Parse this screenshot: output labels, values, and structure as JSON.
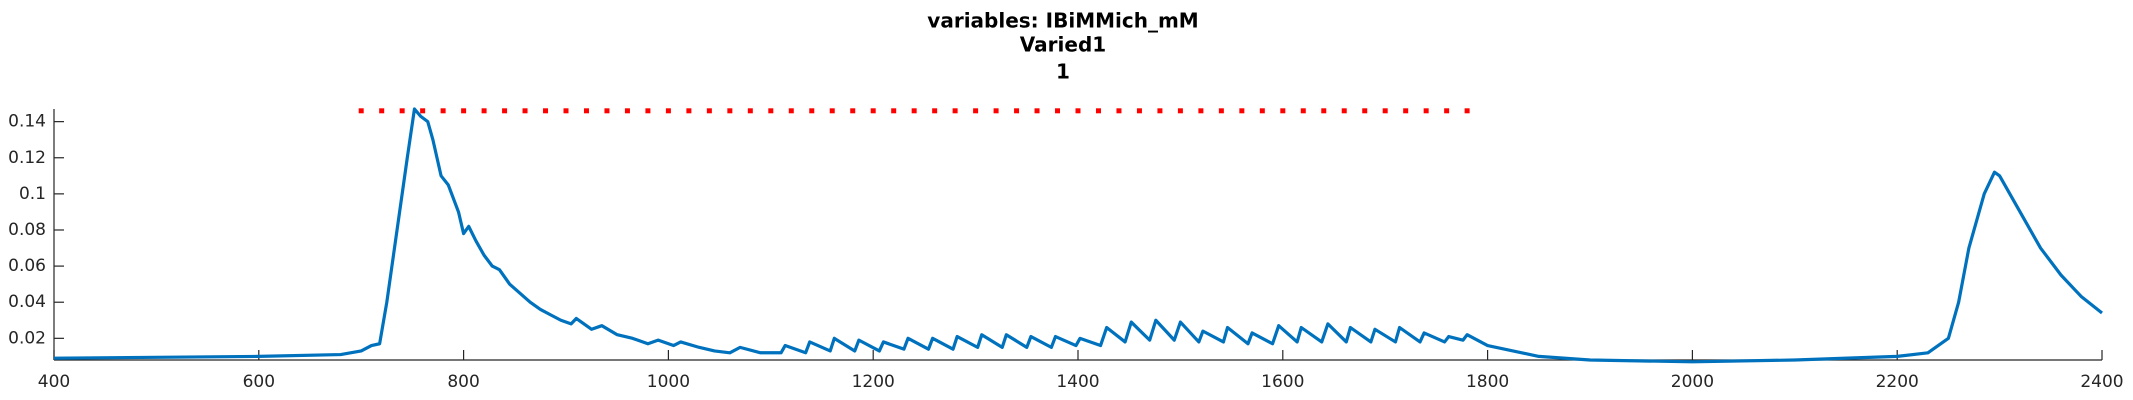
{
  "chart_data": {
    "type": "line",
    "title_lines": [
      "variables: IBiMMich_mM",
      "Varied1",
      "1"
    ],
    "xlim": [
      400,
      2400
    ],
    "xticks": [
      400,
      600,
      800,
      1000,
      1200,
      1400,
      1600,
      1800,
      2000,
      2200,
      2400
    ],
    "ylim": [
      0.008,
      0.147
    ],
    "yticks": [
      0.02,
      0.04,
      0.06,
      0.08,
      0.1,
      0.12,
      0.14
    ],
    "grid": false,
    "series": [
      {
        "type": "line",
        "color": "#0072bd",
        "x": [
          400,
          500,
          600,
          680,
          700,
          710,
          718,
          725,
          735,
          745,
          752,
          758,
          765,
          770,
          778,
          785,
          795,
          800,
          805,
          812,
          820,
          828,
          835,
          845,
          855,
          865,
          875,
          885,
          895,
          905,
          910,
          925,
          935,
          950,
          965,
          980,
          990,
          1005,
          1012,
          1030,
          1045,
          1060,
          1070,
          1090,
          1110,
          1114,
          1134,
          1138,
          1158,
          1162,
          1182,
          1186,
          1206,
          1210,
          1230,
          1234,
          1254,
          1258,
          1278,
          1282,
          1302,
          1306,
          1326,
          1330,
          1350,
          1354,
          1374,
          1378,
          1398,
          1402,
          1422,
          1428,
          1446,
          1452,
          1470,
          1476,
          1494,
          1500,
          1518,
          1522,
          1542,
          1546,
          1566,
          1570,
          1590,
          1596,
          1614,
          1618,
          1638,
          1644,
          1662,
          1666,
          1686,
          1690,
          1710,
          1714,
          1734,
          1738,
          1758,
          1762,
          1776,
          1780,
          1800,
          1850,
          1900,
          2000,
          2100,
          2200,
          2230,
          2250,
          2260,
          2270,
          2285,
          2295,
          2300,
          2320,
          2340,
          2360,
          2380,
          2400
        ],
        "values": [
          0.009,
          0.0095,
          0.01,
          0.011,
          0.013,
          0.016,
          0.017,
          0.04,
          0.08,
          0.12,
          0.147,
          0.143,
          0.14,
          0.13,
          0.11,
          0.105,
          0.09,
          0.078,
          0.082,
          0.074,
          0.066,
          0.06,
          0.058,
          0.05,
          0.045,
          0.04,
          0.036,
          0.033,
          0.03,
          0.028,
          0.031,
          0.025,
          0.027,
          0.022,
          0.02,
          0.017,
          0.019,
          0.016,
          0.018,
          0.015,
          0.013,
          0.012,
          0.015,
          0.012,
          0.012,
          0.016,
          0.012,
          0.018,
          0.013,
          0.02,
          0.013,
          0.019,
          0.013,
          0.018,
          0.014,
          0.02,
          0.014,
          0.02,
          0.014,
          0.021,
          0.015,
          0.022,
          0.015,
          0.022,
          0.015,
          0.021,
          0.015,
          0.021,
          0.016,
          0.02,
          0.016,
          0.026,
          0.018,
          0.029,
          0.019,
          0.03,
          0.019,
          0.029,
          0.018,
          0.024,
          0.018,
          0.026,
          0.017,
          0.023,
          0.017,
          0.027,
          0.018,
          0.026,
          0.018,
          0.028,
          0.018,
          0.026,
          0.018,
          0.025,
          0.018,
          0.026,
          0.018,
          0.023,
          0.018,
          0.021,
          0.019,
          0.022,
          0.016,
          0.01,
          0.008,
          0.007,
          0.008,
          0.01,
          0.012,
          0.02,
          0.04,
          0.07,
          0.1,
          0.112,
          0.11,
          0.09,
          0.07,
          0.055,
          0.043,
          0.034
        ]
      },
      {
        "type": "scatter",
        "color": "#ff0000",
        "x": [
          700,
          720,
          740,
          760,
          780,
          800,
          820,
          840,
          860,
          880,
          900,
          920,
          940,
          960,
          980,
          1000,
          1020,
          1040,
          1060,
          1080,
          1100,
          1120,
          1140,
          1160,
          1180,
          1200,
          1220,
          1240,
          1260,
          1280,
          1300,
          1320,
          1340,
          1360,
          1380,
          1400,
          1420,
          1440,
          1460,
          1480,
          1500,
          1520,
          1540,
          1560,
          1580,
          1600,
          1620,
          1640,
          1660,
          1680,
          1700,
          1720,
          1740,
          1760,
          1780
        ],
        "values": [
          0.146,
          0.146,
          0.146,
          0.146,
          0.146,
          0.146,
          0.146,
          0.146,
          0.146,
          0.146,
          0.146,
          0.146,
          0.146,
          0.146,
          0.146,
          0.146,
          0.146,
          0.146,
          0.146,
          0.146,
          0.146,
          0.146,
          0.146,
          0.146,
          0.146,
          0.146,
          0.146,
          0.146,
          0.146,
          0.146,
          0.146,
          0.146,
          0.146,
          0.146,
          0.146,
          0.146,
          0.146,
          0.146,
          0.146,
          0.146,
          0.146,
          0.146,
          0.146,
          0.146,
          0.146,
          0.146,
          0.146,
          0.146,
          0.146,
          0.146,
          0.146,
          0.146,
          0.146,
          0.146,
          0.146
        ]
      }
    ]
  }
}
